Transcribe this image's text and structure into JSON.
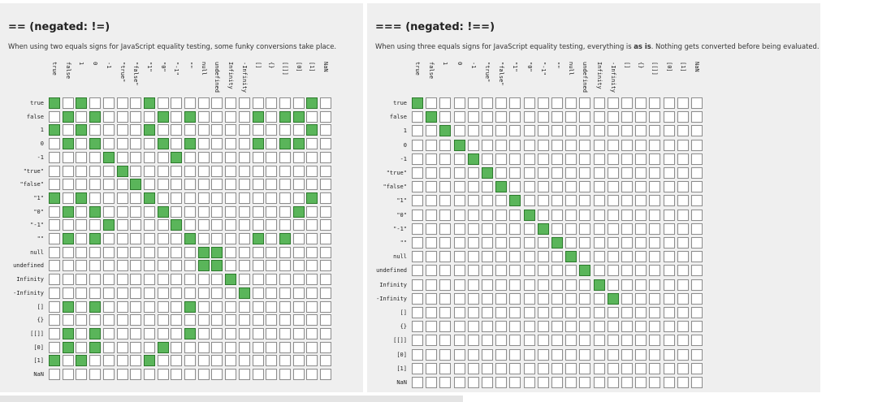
{
  "values": [
    "true",
    "false",
    "1",
    "0",
    "-1",
    "\"true\"",
    "\"false\"",
    "\"1\"",
    "\"0\"",
    "\"-1\"",
    "\"\"",
    "null",
    "undefined",
    "Infinity",
    "-Infinity",
    "[]",
    "{}",
    "[[]]",
    "[0]",
    "[1]",
    "NaN"
  ],
  "loose": {
    "title": "== (negated: !=)",
    "desc": "When using two equals signs for JavaScript equality testing, some funky conversions take place.",
    "matrix": [
      [
        1,
        0,
        1,
        0,
        0,
        0,
        0,
        1,
        0,
        0,
        0,
        0,
        0,
        0,
        0,
        0,
        0,
        0,
        0,
        1,
        0
      ],
      [
        0,
        1,
        0,
        1,
        0,
        0,
        0,
        0,
        1,
        0,
        1,
        0,
        0,
        0,
        0,
        1,
        0,
        1,
        1,
        0,
        0
      ],
      [
        1,
        0,
        1,
        0,
        0,
        0,
        0,
        1,
        0,
        0,
        0,
        0,
        0,
        0,
        0,
        0,
        0,
        0,
        0,
        1,
        0
      ],
      [
        0,
        1,
        0,
        1,
        0,
        0,
        0,
        0,
        1,
        0,
        1,
        0,
        0,
        0,
        0,
        1,
        0,
        1,
        1,
        0,
        0
      ],
      [
        0,
        0,
        0,
        0,
        1,
        0,
        0,
        0,
        0,
        1,
        0,
        0,
        0,
        0,
        0,
        0,
        0,
        0,
        0,
        0,
        0
      ],
      [
        0,
        0,
        0,
        0,
        0,
        1,
        0,
        0,
        0,
        0,
        0,
        0,
        0,
        0,
        0,
        0,
        0,
        0,
        0,
        0,
        0
      ],
      [
        0,
        0,
        0,
        0,
        0,
        0,
        1,
        0,
        0,
        0,
        0,
        0,
        0,
        0,
        0,
        0,
        0,
        0,
        0,
        0,
        0
      ],
      [
        1,
        0,
        1,
        0,
        0,
        0,
        0,
        1,
        0,
        0,
        0,
        0,
        0,
        0,
        0,
        0,
        0,
        0,
        0,
        1,
        0
      ],
      [
        0,
        1,
        0,
        1,
        0,
        0,
        0,
        0,
        1,
        0,
        0,
        0,
        0,
        0,
        0,
        0,
        0,
        0,
        1,
        0,
        0
      ],
      [
        0,
        0,
        0,
        0,
        1,
        0,
        0,
        0,
        0,
        1,
        0,
        0,
        0,
        0,
        0,
        0,
        0,
        0,
        0,
        0,
        0
      ],
      [
        0,
        1,
        0,
        1,
        0,
        0,
        0,
        0,
        0,
        0,
        1,
        0,
        0,
        0,
        0,
        1,
        0,
        1,
        0,
        0,
        0
      ],
      [
        0,
        0,
        0,
        0,
        0,
        0,
        0,
        0,
        0,
        0,
        0,
        1,
        1,
        0,
        0,
        0,
        0,
        0,
        0,
        0,
        0
      ],
      [
        0,
        0,
        0,
        0,
        0,
        0,
        0,
        0,
        0,
        0,
        0,
        1,
        1,
        0,
        0,
        0,
        0,
        0,
        0,
        0,
        0
      ],
      [
        0,
        0,
        0,
        0,
        0,
        0,
        0,
        0,
        0,
        0,
        0,
        0,
        0,
        1,
        0,
        0,
        0,
        0,
        0,
        0,
        0
      ],
      [
        0,
        0,
        0,
        0,
        0,
        0,
        0,
        0,
        0,
        0,
        0,
        0,
        0,
        0,
        1,
        0,
        0,
        0,
        0,
        0,
        0
      ],
      [
        0,
        1,
        0,
        1,
        0,
        0,
        0,
        0,
        0,
        0,
        1,
        0,
        0,
        0,
        0,
        0,
        0,
        0,
        0,
        0,
        0
      ],
      [
        0,
        0,
        0,
        0,
        0,
        0,
        0,
        0,
        0,
        0,
        0,
        0,
        0,
        0,
        0,
        0,
        0,
        0,
        0,
        0,
        0
      ],
      [
        0,
        1,
        0,
        1,
        0,
        0,
        0,
        0,
        0,
        0,
        1,
        0,
        0,
        0,
        0,
        0,
        0,
        0,
        0,
        0,
        0
      ],
      [
        0,
        1,
        0,
        1,
        0,
        0,
        0,
        0,
        1,
        0,
        0,
        0,
        0,
        0,
        0,
        0,
        0,
        0,
        0,
        0,
        0
      ],
      [
        1,
        0,
        1,
        0,
        0,
        0,
        0,
        1,
        0,
        0,
        0,
        0,
        0,
        0,
        0,
        0,
        0,
        0,
        0,
        0,
        0
      ],
      [
        0,
        0,
        0,
        0,
        0,
        0,
        0,
        0,
        0,
        0,
        0,
        0,
        0,
        0,
        0,
        0,
        0,
        0,
        0,
        0,
        0
      ]
    ]
  },
  "strict": {
    "title": "=== (negated: !==)",
    "desc_before": "When using three equals signs for JavaScript equality testing, everything is ",
    "desc_bold": "as is",
    "desc_after": ". Nothing gets converted before being evaluated.",
    "matrix_rule": "diagonal-except-objects-and-NaN"
  },
  "colors": {
    "match": "#5ab55a",
    "match_border": "#2c7a2c",
    "empty": "#ffffff",
    "border": "#8c8c8c",
    "panel_bg": "#efefef"
  }
}
